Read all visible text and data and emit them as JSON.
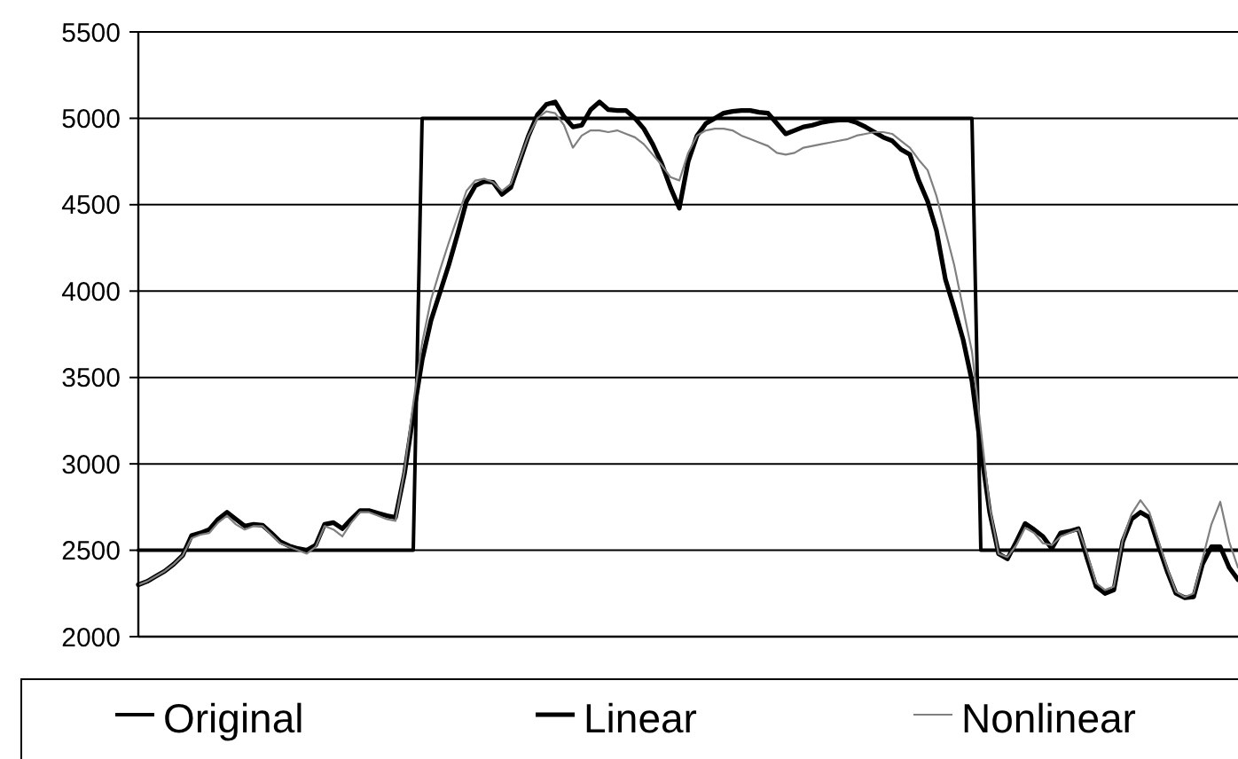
{
  "chart_data": {
    "type": "line",
    "categories": [
      null,
      null,
      null,
      null,
      null,
      null,
      null,
      null,
      null,
      null,
      null,
      null,
      null,
      null,
      null,
      null,
      null,
      null,
      null,
      null,
      null,
      null,
      null,
      null,
      null,
      null,
      null,
      null,
      null,
      null,
      null,
      null,
      null,
      null,
      null,
      null,
      null,
      null,
      null,
      null,
      null,
      null,
      null,
      null,
      null,
      null,
      null,
      null,
      null,
      null,
      null,
      null,
      null,
      null,
      null,
      null,
      null,
      null,
      null,
      null,
      null,
      null,
      null,
      null,
      null,
      null,
      null,
      null,
      null,
      null,
      null,
      null,
      null,
      null,
      null,
      null,
      null,
      null,
      null,
      null,
      null,
      null,
      null,
      null,
      null,
      null,
      null,
      null,
      null,
      null,
      null,
      null,
      null,
      null,
      null,
      null,
      null,
      null,
      null,
      null,
      null,
      null,
      null,
      null,
      null,
      null,
      null,
      null,
      null,
      null,
      null,
      null,
      null,
      null,
      null,
      null,
      null,
      null,
      null,
      null,
      null,
      null,
      null,
      null,
      null
    ],
    "ylim": [
      2000,
      5500
    ],
    "yticks": [
      2000,
      2500,
      3000,
      3500,
      4000,
      4500,
      5000,
      5500
    ],
    "grid": "y",
    "legend": "bottom",
    "marker": "none",
    "line_style": "solid",
    "series": [
      {
        "name": "Original",
        "color": "#000000",
        "values": [
          2500,
          2500,
          2500,
          2500,
          2500,
          2500,
          2500,
          2500,
          2500,
          2500,
          2500,
          2500,
          2500,
          2500,
          2500,
          2500,
          2500,
          2500,
          2500,
          2500,
          2500,
          2500,
          2500,
          2500,
          2500,
          2500,
          2500,
          2500,
          2500,
          2500,
          2500,
          2500,
          5000,
          5000,
          5000,
          5000,
          5000,
          5000,
          5000,
          5000,
          5000,
          5000,
          5000,
          5000,
          5000,
          5000,
          5000,
          5000,
          5000,
          5000,
          5000,
          5000,
          5000,
          5000,
          5000,
          5000,
          5000,
          5000,
          5000,
          5000,
          5000,
          5000,
          5000,
          5000,
          5000,
          5000,
          5000,
          5000,
          5000,
          5000,
          5000,
          5000,
          5000,
          5000,
          5000,
          5000,
          5000,
          5000,
          5000,
          5000,
          5000,
          5000,
          5000,
          5000,
          5000,
          5000,
          5000,
          5000,
          5000,
          5000,
          5000,
          5000,
          5000,
          5000,
          5000,
          2500,
          2500,
          2500,
          2500,
          2500,
          2500,
          2500,
          2500,
          2500,
          2500,
          2500,
          2500,
          2500,
          2500,
          2500,
          2500,
          2500,
          2500,
          2500,
          2500,
          2500,
          2500,
          2500,
          2500,
          2500,
          2500,
          2500,
          2500,
          2500,
          2500
        ]
      },
      {
        "name": "Linear",
        "color": "#000000",
        "values": [
          2300,
          2320,
          2350,
          2380,
          2420,
          2470,
          2585,
          2600,
          2620,
          2680,
          2720,
          2680,
          2640,
          2650,
          2645,
          2600,
          2550,
          2525,
          2510,
          2500,
          2530,
          2650,
          2660,
          2625,
          2680,
          2730,
          2730,
          2715,
          2700,
          2690,
          2940,
          3280,
          3600,
          3830,
          3990,
          4150,
          4330,
          4520,
          4610,
          4635,
          4630,
          4560,
          4600,
          4750,
          4900,
          5020,
          5080,
          5095,
          5010,
          4950,
          4960,
          5050,
          5095,
          5050,
          5045,
          5045,
          5000,
          4940,
          4850,
          4740,
          4600,
          4480,
          4750,
          4900,
          4970,
          5000,
          5030,
          5040,
          5045,
          5045,
          5035,
          5030,
          4970,
          4910,
          4930,
          4950,
          4960,
          4975,
          4985,
          4990,
          4990,
          4975,
          4950,
          4920,
          4890,
          4870,
          4820,
          4790,
          4640,
          4520,
          4350,
          4070,
          3900,
          3720,
          3480,
          3085,
          2720,
          2480,
          2450,
          2550,
          2655,
          2620,
          2580,
          2510,
          2600,
          2610,
          2625,
          2450,
          2290,
          2250,
          2270,
          2550,
          2680,
          2720,
          2690,
          2530,
          2380,
          2250,
          2225,
          2230,
          2420,
          2520,
          2520,
          2400,
          2330
        ]
      },
      {
        "name": "Nonlinear",
        "color": "#808080",
        "values": [
          2300,
          2320,
          2350,
          2380,
          2420,
          2470,
          2570,
          2590,
          2600,
          2660,
          2700,
          2650,
          2620,
          2640,
          2640,
          2590,
          2540,
          2520,
          2500,
          2480,
          2520,
          2640,
          2620,
          2580,
          2660,
          2720,
          2720,
          2700,
          2680,
          2670,
          2960,
          3350,
          3700,
          3950,
          4120,
          4280,
          4430,
          4580,
          4640,
          4650,
          4630,
          4580,
          4620,
          4760,
          4900,
          5000,
          5040,
          5030,
          4960,
          4830,
          4900,
          4930,
          4930,
          4920,
          4930,
          4910,
          4890,
          4850,
          4790,
          4730,
          4660,
          4640,
          4800,
          4900,
          4930,
          4940,
          4940,
          4930,
          4900,
          4880,
          4860,
          4840,
          4800,
          4790,
          4800,
          4830,
          4840,
          4850,
          4860,
          4870,
          4880,
          4900,
          4910,
          4920,
          4920,
          4910,
          4870,
          4830,
          4760,
          4700,
          4550,
          4350,
          4150,
          3900,
          3650,
          3200,
          2750,
          2480,
          2460,
          2530,
          2630,
          2600,
          2540,
          2530,
          2580,
          2600,
          2620,
          2480,
          2310,
          2270,
          2290,
          2560,
          2710,
          2790,
          2720,
          2560,
          2400,
          2260,
          2230,
          2250,
          2450,
          2650,
          2780,
          2550,
          2400
        ]
      }
    ]
  }
}
